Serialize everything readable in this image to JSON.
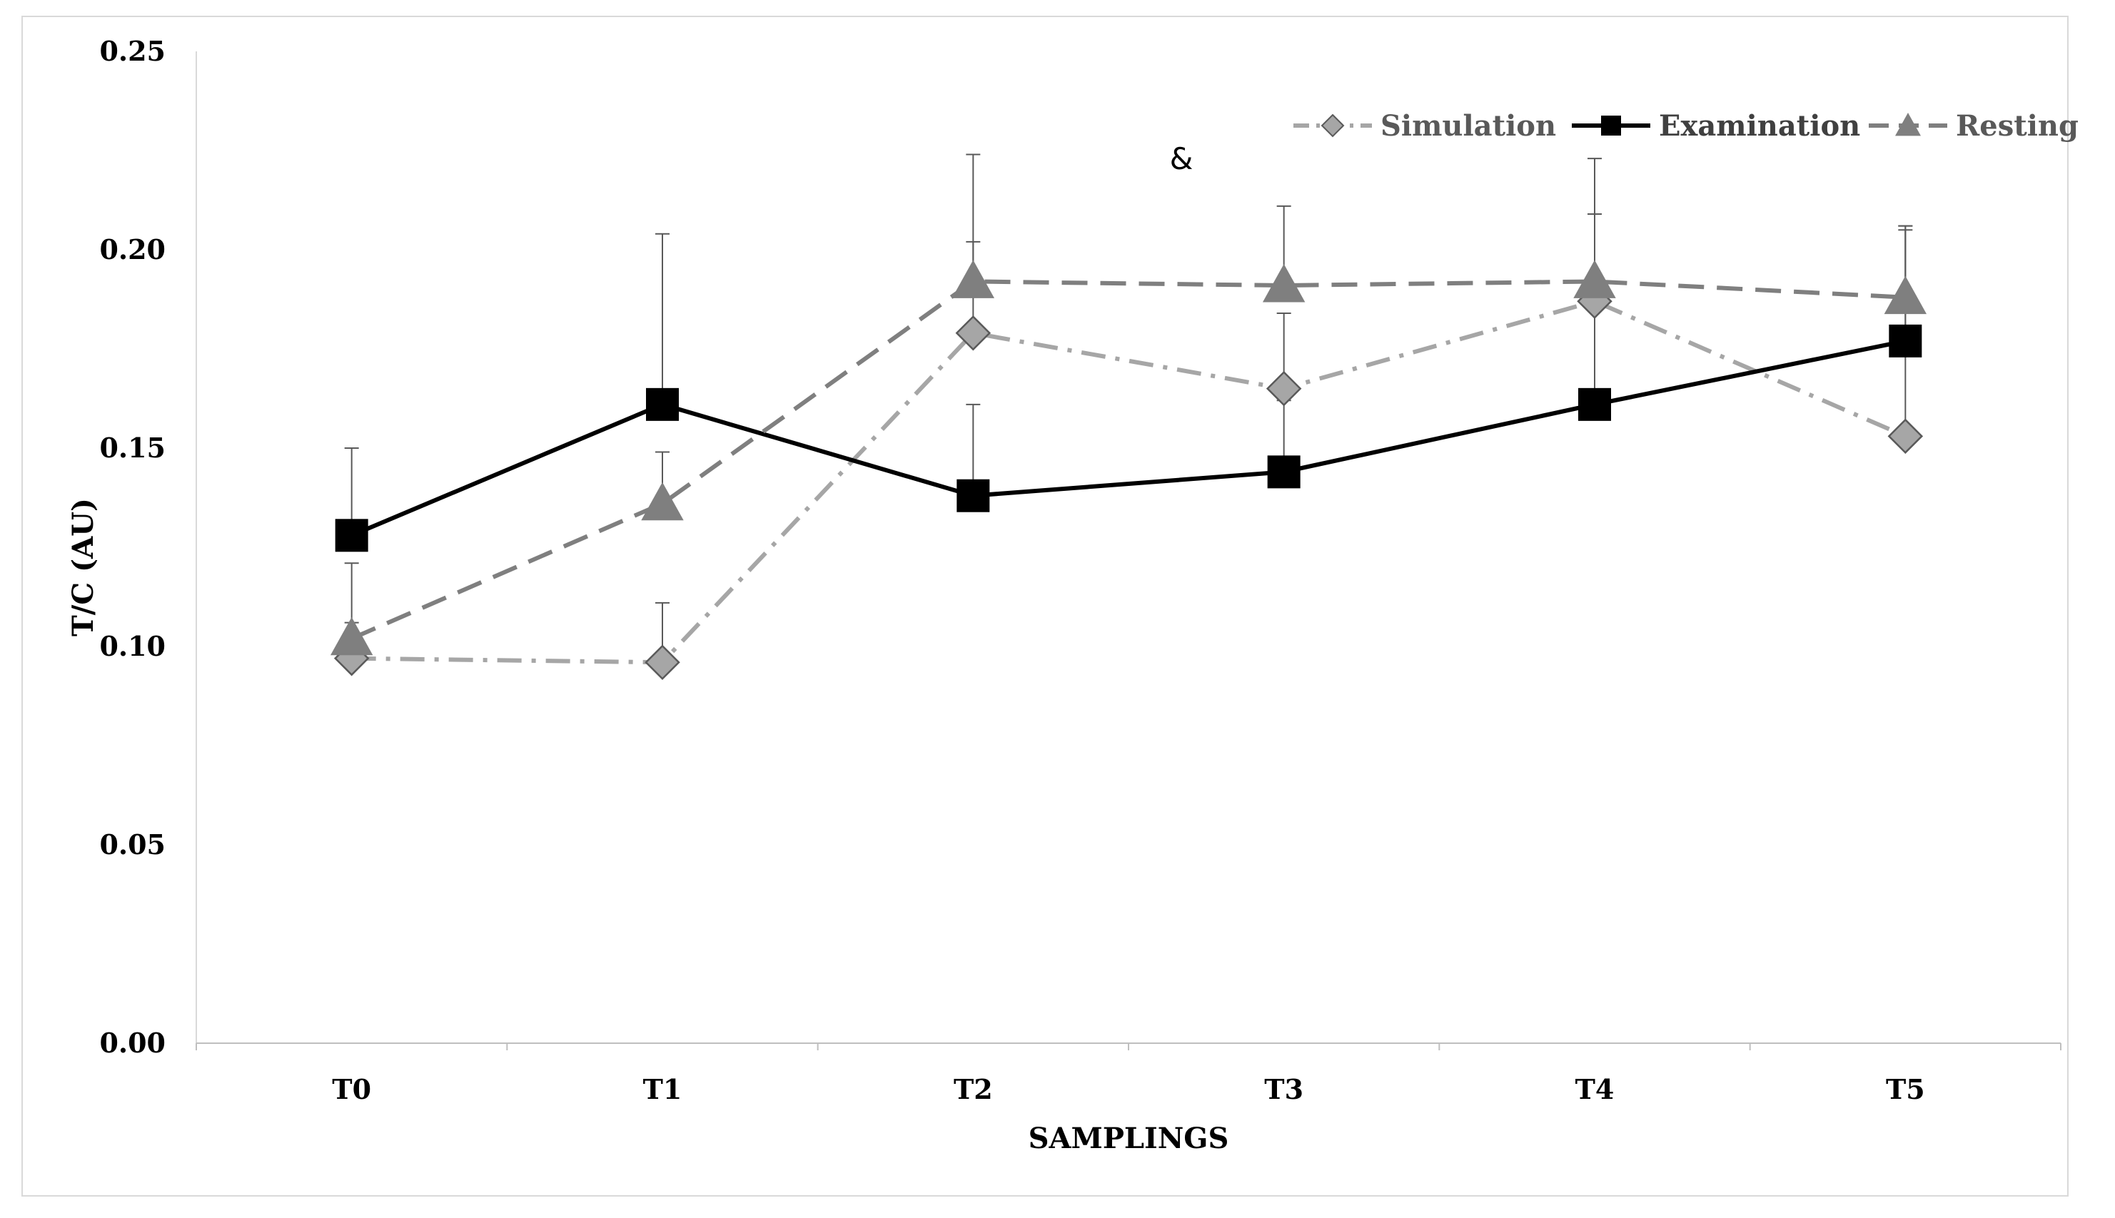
{
  "chart_data": {
    "type": "line",
    "title": "",
    "xlabel": "SAMPLINGS",
    "ylabel": "T/C (AU)",
    "categories": [
      "T0",
      "T1",
      "T2",
      "T3",
      "T4",
      "T5"
    ],
    "ylim": [
      0,
      0.25
    ],
    "yticks": [
      "0.00",
      "0.05",
      "0.10",
      "0.15",
      "0.20",
      "0.25"
    ],
    "grid": false,
    "legend_position": "top-right",
    "annotation": "&",
    "series": [
      {
        "name": "Simulation",
        "values": [
          0.097,
          0.096,
          0.179,
          0.165,
          0.187,
          0.153
        ],
        "error": [
          0.009,
          0.015,
          0.023,
          0.019,
          0.022,
          0.052
        ],
        "color": "#a6a6a6",
        "marker": "diamond",
        "dash": "dashdot"
      },
      {
        "name": "Examination",
        "values": [
          0.128,
          0.161,
          0.138,
          0.144,
          0.161,
          0.177
        ],
        "error": [
          0.022,
          0.043,
          0.023,
          0.018,
          0.048,
          0.029
        ],
        "color": "#000000",
        "marker": "square",
        "dash": "solid"
      },
      {
        "name": "Resting",
        "values": [
          0.102,
          0.136,
          0.192,
          0.191,
          0.192,
          0.188
        ],
        "error": [
          0.019,
          0.013,
          0.032,
          0.02,
          0.031,
          0.018
        ],
        "color": "#7f7f7f",
        "marker": "triangle",
        "dash": "dashed"
      }
    ]
  }
}
